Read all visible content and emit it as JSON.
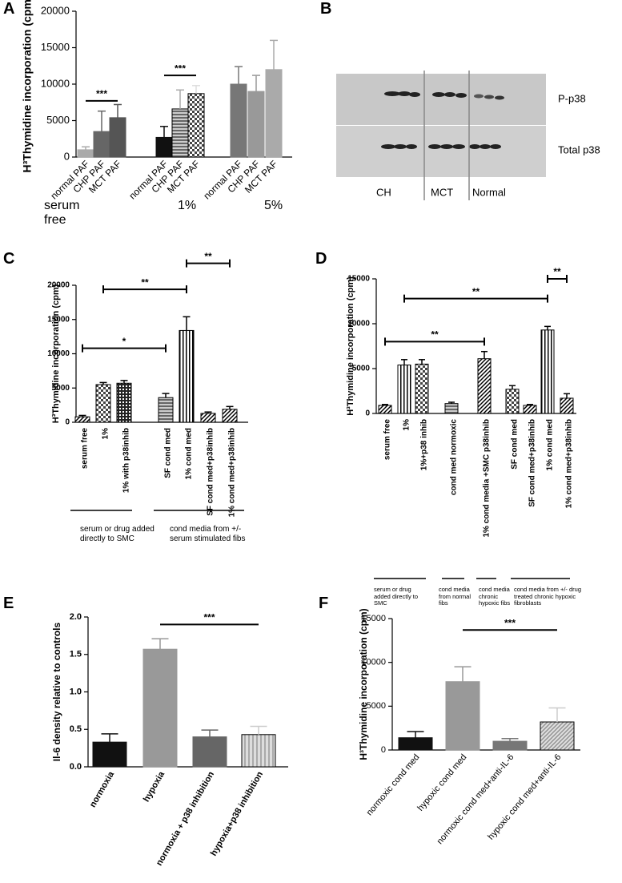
{
  "panel_labels": [
    "A",
    "B",
    "C",
    "D",
    "E",
    "F"
  ],
  "blot": {
    "rows": [
      "P-p38",
      "Total p38"
    ],
    "lanes": [
      "CH",
      "MCT",
      "Normal"
    ]
  },
  "chart_data": [
    {
      "type": "bar",
      "ylabel": "H³Thymidine incorporation (cpm)",
      "categories": [
        "normal PAF",
        "CHP PAF",
        "MCT PAF",
        "normal PAF",
        "CHP PAF",
        "MCT PAF",
        "normal PAF",
        "CHP PAF",
        "MCT PAF"
      ],
      "values": [
        1000,
        3500,
        5400,
        2700,
        6600,
        8700,
        10000,
        9000,
        12000
      ],
      "errors": [
        400,
        2800,
        1800,
        1500,
        2600,
        1100,
        2400,
        2200,
        4000
      ],
      "colors": [
        "#aaaaaa",
        "#666666",
        "#555555",
        "#111111",
        "#aaaaaa",
        "#dddddd",
        "#777777",
        "#999999",
        "#aaaaaa"
      ],
      "patterns": [
        "none",
        "none",
        "none",
        "none",
        "hstripes",
        "checker",
        "none",
        "none",
        "none"
      ],
      "group_labels": [
        "serum free",
        "1%",
        "5%"
      ],
      "brackets": [
        {
          "from": 0,
          "to": 2,
          "y": 7700,
          "label": "***"
        },
        {
          "from": 3,
          "to": 5,
          "y": 11200,
          "label": "***"
        }
      ],
      "ylim": [
        0,
        20000
      ],
      "yticks": [
        0,
        5000,
        10000,
        15000,
        20000
      ]
    },
    {
      "type": "bar",
      "ylabel": "H³Thymidine incorporation (cpm)",
      "categories": [
        "serum free",
        "1%",
        "1% with p38inhib",
        "SF cond med",
        "1% cond med",
        "SF cond med+p38inhib",
        "1% cond med+p38inhib"
      ],
      "values": [
        800,
        5500,
        5700,
        3600,
        13400,
        1300,
        1900
      ],
      "errors": [
        200,
        300,
        400,
        600,
        2000,
        200,
        400
      ],
      "colors": [
        "#ffffff",
        "#ffffff",
        "#ffffff",
        "#ffffff",
        "#ffffff",
        "#ffffff",
        "#ffffff"
      ],
      "patterns": [
        "diag",
        "checker",
        "dots",
        "hstripes",
        "vstripes",
        "diag",
        "diag"
      ],
      "group_labels": [
        "serum or drug added directly to SMC",
        "cond media from +/- serum stimulated fibs"
      ],
      "brackets": [
        {
          "from": 0,
          "to": 3,
          "y": 10800,
          "label": "*"
        },
        {
          "from": 1,
          "to": 4,
          "y": 19400,
          "label": "**"
        },
        {
          "from": 4,
          "to": 6,
          "y": 23200,
          "label": "**"
        }
      ],
      "ylim": [
        0,
        20000
      ],
      "yticks": [
        0,
        5000,
        10000,
        15000,
        20000
      ]
    },
    {
      "type": "bar",
      "ylabel": "H³Thymidine incorporation (cpm)",
      "categories": [
        "serum free",
        "1%",
        "1%+p38 inhib",
        "cond med normoxic",
        "1% cond media +SMC p38inhib",
        "SF cond med",
        "SF cond med+p38inhib",
        "1% cond med",
        "1% cond med+p38inhib"
      ],
      "values": [
        900,
        5400,
        5500,
        1100,
        6100,
        2700,
        900,
        9300,
        1700
      ],
      "errors": [
        100,
        600,
        500,
        150,
        800,
        400,
        100,
        400,
        500
      ],
      "colors": [
        "#ffffff",
        "#ffffff",
        "#ffffff",
        "#ffffff",
        "#ffffff",
        "#ffffff",
        "#ffffff",
        "#ffffff",
        "#ffffff"
      ],
      "patterns": [
        "diag",
        "vstripes",
        "checker",
        "hstripes",
        "diag",
        "checker",
        "diag",
        "vstripes",
        "diag"
      ],
      "group_labels": [
        "serum or drug added directly to SMC",
        "cond media from normal fibs",
        "cond media chronic hypoxic fibs",
        "cond media from +/- drug treated chronic hypoxic fibroblasts"
      ],
      "brackets": [
        {
          "from": 0,
          "to": 4,
          "y": 8000,
          "label": "**"
        },
        {
          "from": 1,
          "to": 7,
          "y": 12800,
          "label": "**"
        },
        {
          "from": 7,
          "to": 8,
          "y": 15000,
          "label": "**"
        }
      ],
      "ylim": [
        0,
        15000
      ],
      "yticks": [
        0,
        5000,
        10000,
        15000
      ]
    },
    {
      "type": "bar",
      "ylabel": "Il-6 density relative to controls",
      "categories": [
        "normoxia",
        "hypoxia",
        "normoxia + p38 inhibition",
        "hypoxia+p38 inhibition"
      ],
      "values": [
        0.33,
        1.57,
        0.4,
        0.43
      ],
      "errors": [
        0.11,
        0.14,
        0.09,
        0.11
      ],
      "colors": [
        "#111111",
        "#999999",
        "#666666",
        "#cccccc"
      ],
      "patterns": [
        "none",
        "none",
        "none",
        "vstripes-light"
      ],
      "brackets": [
        {
          "from": 1,
          "to": 3,
          "y": 1.9,
          "label": "***"
        }
      ],
      "ylim": [
        0,
        2
      ],
      "yticks": [
        {
          "value": 0,
          "label": "0.0"
        },
        0.5,
        {
          "value": 1,
          "label": "1.0"
        },
        1.5,
        {
          "value": 2,
          "label": "2.0"
        }
      ]
    },
    {
      "type": "bar",
      "ylabel": "H³Thymidine incorporation (cpm)",
      "categories": [
        "normoxic cond med",
        "hypoxic cond med",
        "normoxic cond med+anti-IL-6",
        "hypoxic cond med+anti-IL-6"
      ],
      "values": [
        1400,
        7800,
        1000,
        3200
      ],
      "errors": [
        700,
        1700,
        300,
        1600
      ],
      "colors": [
        "#111111",
        "#999999",
        "#777777",
        "#cccccc"
      ],
      "patterns": [
        "none",
        "none",
        "none",
        "diag-light"
      ],
      "brackets": [
        {
          "from": 1,
          "to": 3,
          "y": 13700,
          "label": "***"
        }
      ],
      "ylim": [
        0,
        15000
      ],
      "yticks": [
        0,
        5000,
        10000,
        15000
      ]
    }
  ]
}
